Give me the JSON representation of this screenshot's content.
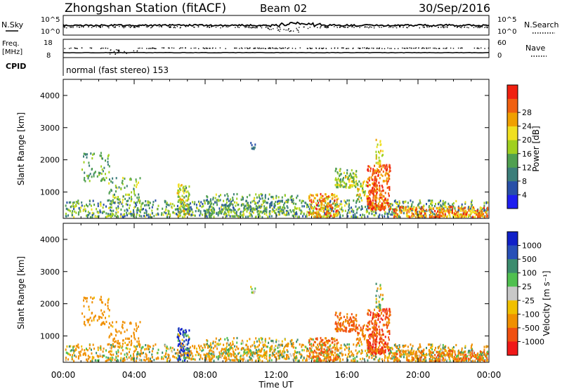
{
  "header": {
    "station": "Zhongshan Station (fitACF)",
    "beam": "Beam 02",
    "date": "30/Sep/2016"
  },
  "strip_labels": {
    "nsky": "N.Sky",
    "nsky_ticks": [
      "10^5",
      "10^0"
    ],
    "nsearch": "N.Search",
    "nsearch_ticks": [
      "10^5",
      "10^0"
    ],
    "freq_line1": "Freq.",
    "freq_line2": "[MHz]",
    "freq_ticks": [
      "18",
      "8"
    ],
    "nave": "Nave",
    "nave_ticks": [
      "60",
      "0"
    ],
    "cpid": "CPID",
    "cpid_text": "normal (fast stereo) 153"
  },
  "chart_data": [
    {
      "type": "heatmap",
      "title": "",
      "xlabel": "",
      "ylabel": "Slant Range [km]",
      "ylim": [
        180,
        4500
      ],
      "y_ticks": [
        1000,
        2000,
        3000,
        4000
      ],
      "colorbar": {
        "label": "Power [dB]",
        "range": [
          0,
          32
        ],
        "ticks": [
          "4",
          "8",
          "12",
          "16",
          "20",
          "24",
          "28"
        ],
        "colors": [
          "#1e1ef0",
          "#2850a8",
          "#3c7e7a",
          "#50a050",
          "#a0d020",
          "#f0e020",
          "#f0a000",
          "#f06010",
          "#f02010"
        ]
      },
      "field": "power"
    },
    {
      "type": "heatmap",
      "title": "",
      "xlabel": "Time UT",
      "ylabel": "Slant Range [km]",
      "ylim": [
        180,
        4500
      ],
      "y_ticks": [
        1000,
        2000,
        3000,
        4000
      ],
      "x_ticks": [
        "00:00",
        "04:00",
        "08:00",
        "12:00",
        "16:00",
        "20:00",
        "00:00"
      ],
      "colorbar": {
        "label": "Velocity [m s⁻¹]",
        "ticks": [
          "1000",
          "500",
          "100",
          "25",
          "-25",
          "-100",
          "-500",
          "-1000"
        ],
        "colors": [
          "#1020c8",
          "#2850b8",
          "#3c8c6e",
          "#50c050",
          "#c8c8c8",
          "#f0c000",
          "#f09000",
          "#f05010",
          "#f01818"
        ]
      },
      "field": "velocity"
    }
  ],
  "scatter_regions": [
    {
      "t0": 0.1,
      "t1": 23.9,
      "r0": 180,
      "r1": 700,
      "density": 0.5,
      "p": [
        4,
        20
      ],
      "v": [
        -300,
        150
      ]
    },
    {
      "t0": 1.0,
      "t1": 2.6,
      "r0": 1300,
      "r1": 2200,
      "density": 0.25,
      "p": [
        8,
        16
      ],
      "v": [
        -200,
        -40
      ]
    },
    {
      "t0": 2.5,
      "t1": 4.3,
      "r0": 700,
      "r1": 1400,
      "density": 0.3,
      "p": [
        8,
        20
      ],
      "v": [
        -300,
        -50
      ]
    },
    {
      "t0": 6.4,
      "t1": 7.1,
      "r0": 200,
      "r1": 1200,
      "density": 0.7,
      "p": [
        10,
        24
      ],
      "v": [
        -200,
        1200
      ]
    },
    {
      "t0": 13.8,
      "t1": 15.5,
      "r0": 180,
      "r1": 900,
      "density": 0.8,
      "p": [
        16,
        30
      ],
      "v": [
        -600,
        50
      ]
    },
    {
      "t0": 15.3,
      "t1": 16.5,
      "r0": 1100,
      "r1": 1700,
      "density": 0.85,
      "p": [
        10,
        22
      ],
      "v": [
        -700,
        -100
      ]
    },
    {
      "t0": 16.5,
      "t1": 17.1,
      "r0": 700,
      "r1": 1300,
      "density": 0.6,
      "p": [
        12,
        24
      ],
      "v": [
        -400,
        -50
      ]
    },
    {
      "t0": 17.1,
      "t1": 18.4,
      "r0": 400,
      "r1": 1800,
      "density": 0.85,
      "p": [
        22,
        32
      ],
      "v": [
        -900,
        -150
      ]
    },
    {
      "t0": 17.6,
      "t1": 18.0,
      "r0": 1800,
      "r1": 2600,
      "density": 0.5,
      "p": [
        14,
        22
      ],
      "v": [
        -100,
        100
      ]
    },
    {
      "t0": 18.6,
      "t1": 23.9,
      "r0": 180,
      "r1": 500,
      "density": 0.85,
      "p": [
        18,
        30
      ],
      "v": [
        -500,
        80
      ]
    },
    {
      "t0": 10.5,
      "t1": 10.8,
      "r0": 2300,
      "r1": 2500,
      "density": 0.7,
      "p": [
        4,
        10
      ],
      "v": [
        -25,
        25
      ]
    },
    {
      "t0": 8.0,
      "t1": 13.5,
      "r0": 300,
      "r1": 900,
      "density": 0.35,
      "p": [
        6,
        18
      ],
      "v": [
        -150,
        100
      ]
    }
  ]
}
